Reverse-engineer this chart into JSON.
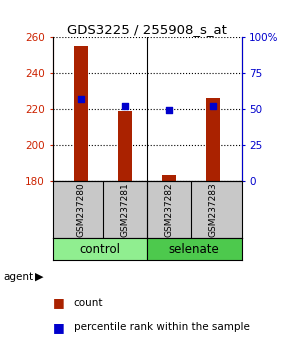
{
  "title": "GDS3225 / 255908_s_at",
  "samples": [
    "GSM237280",
    "GSM237281",
    "GSM237282",
    "GSM237283"
  ],
  "groups": [
    "control",
    "control",
    "selenate",
    "selenate"
  ],
  "control_color": "#90EE90",
  "selenate_color": "#4DC94D",
  "count_values": [
    255,
    219,
    183,
    226
  ],
  "percentile_values": [
    57,
    52,
    49,
    52
  ],
  "ylim_left": [
    180,
    260
  ],
  "ylim_right": [
    0,
    100
  ],
  "yticks_left": [
    180,
    200,
    220,
    240,
    260
  ],
  "yticks_right": [
    0,
    25,
    50,
    75,
    100
  ],
  "ytick_right_labels": [
    "0",
    "25",
    "50",
    "75",
    "100%"
  ],
  "bar_color": "#AA2200",
  "dot_color": "#0000CC",
  "bg_color": "#FFFFFF",
  "sample_bg": "#C8C8C8",
  "left_tick_color": "#CC2200",
  "right_tick_color": "#0000CC"
}
